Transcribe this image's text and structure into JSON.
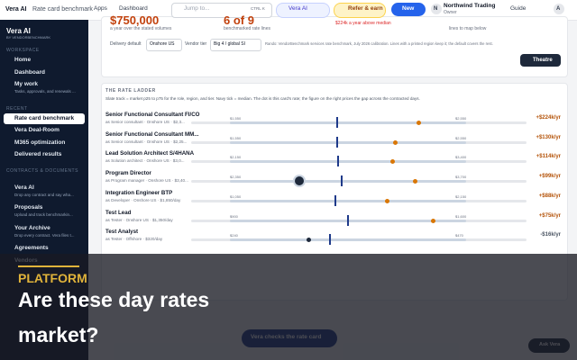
{
  "topbar": {
    "breadcrumb": [
      "Vera AI",
      "Rate card benchmark"
    ],
    "nav": [
      "Apps",
      "Dashboard"
    ],
    "search": "Jump to...",
    "shortcut": "CTRL K",
    "vera": "Vera AI",
    "refer": "Refer & earn",
    "new": "New",
    "avatar": "N",
    "org": "Northwind Trading",
    "role": "Owner",
    "guide": "Guide",
    "user": "A"
  },
  "sidebar": {
    "logo": "Vera AI",
    "byline": "BY VENDORBENCHMARK",
    "sections": [
      {
        "heading": "WORKSPACE",
        "items": [
          {
            "label": "Home"
          },
          {
            "label": "Dashboard"
          },
          {
            "label": "My work",
            "hint": "Tasks, approvals, and renewals ..."
          }
        ]
      },
      {
        "heading": "RECENT",
        "items": [
          {
            "label": "Rate card benchmark"
          },
          {
            "label": "Vera Deal-Room"
          },
          {
            "label": "M365 optimization"
          },
          {
            "label": "Delivered results"
          }
        ]
      },
      {
        "heading": "CONTRACTS & DOCUMENTS",
        "items": [
          {
            "label": "Vera AI",
            "hint": "Drop any contract and say wha..."
          },
          {
            "label": "Proposals",
            "hint": "Upload and track benchmarkin..."
          },
          {
            "label": "Your Archive",
            "hint": "Drop every contract. Vera files t..."
          },
          {
            "label": "Agreements"
          },
          {
            "label": "Vendors"
          }
        ]
      }
    ]
  },
  "summary": [
    {
      "value": "$750,000",
      "caption": "a year over the stated volumes"
    },
    {
      "value": "6 of 9",
      "caption": "benchmarked rate lines"
    },
    {
      "value": "$224k a year above median"
    },
    {
      "caption": "lines to map below"
    }
  ],
  "filters": {
    "delivery_label": "Delivery default",
    "delivery": "Onshore US",
    "tier_label": "Vendor tier",
    "tier": "Big 4 / global SI",
    "note": "Rando: VendorBenchmark services rate benchmark, July 2026 calibration. Lines with a printed region keep it; the default covers the rest.",
    "theatre": "Theatre"
  },
  "ladder": {
    "heading": "THE RATE LADDER",
    "description": "Slate track = market p25 to p75 for the role, region, and tier. Navy tick = median. The dot is this card's rate; the figure on the right prices the gap across the contracted days.",
    "rows": [
      {
        "title": "Senior Functional Consultant FI/CO",
        "subtitle": "as Senior consultant · Onshore US · $2,3...",
        "low": "$1,550",
        "high": "$2,550",
        "gap": "+$224k/yr"
      },
      {
        "title": "Senior Functional Consultant MM...",
        "subtitle": "as Senior consultant · Onshore US · $2,25...",
        "low": "$1,550",
        "high": "$2,550",
        "gap": "+$130k/yr"
      },
      {
        "title": "Lead Solution Architect S/4HANA",
        "subtitle": "as Solution architect · Onshore US · $3,0...",
        "low": "$2,150",
        "high": "$3,400",
        "gap": "+$114k/yr"
      },
      {
        "title": "Program Director",
        "subtitle": "as Program manager · Onshore US · $3,40...",
        "low": "$2,350",
        "high": "$3,700",
        "gap": "+$99k/yr"
      },
      {
        "title": "Integration Engineer BTP",
        "subtitle": "as Developer · Onshore US · $1,850/day",
        "low": "$1,050",
        "high": "$2,150",
        "gap": "+$88k/yr"
      },
      {
        "title": "Test Lead",
        "subtitle": "as Tester · Onshore US · $1,350/day",
        "low": "$900",
        "high": "$1,600",
        "gap": "+$75k/yr"
      },
      {
        "title": "Test Analyst",
        "subtitle": "as Tester · Offshore · $320/day",
        "low": "$240",
        "high": "$470",
        "gap": "-$16k/yr"
      }
    ]
  },
  "footer": {
    "button": "Vera checks the rate card",
    "ask": "Ask Vera"
  },
  "overlay": {
    "eyebrow": "PLATFORM",
    "title_lines": [
      "Are these day rates",
      "market?"
    ]
  }
}
